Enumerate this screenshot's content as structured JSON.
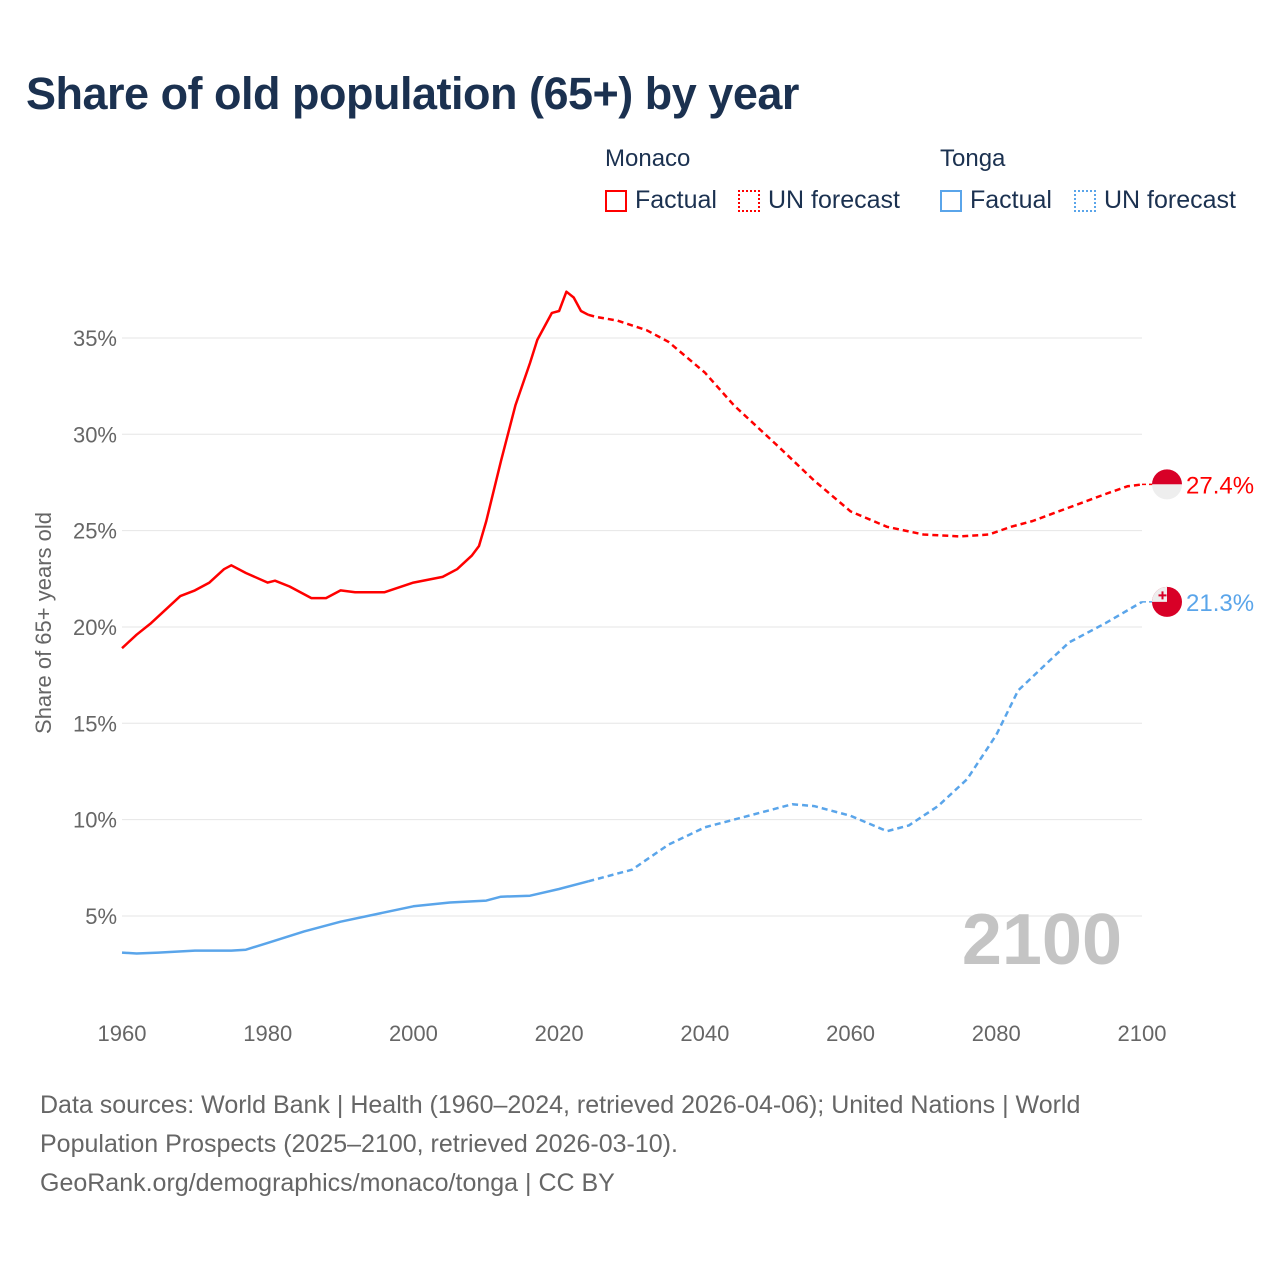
{
  "title": "Share of old population (65+) by year",
  "legend": {
    "groups": [
      {
        "country": "Monaco",
        "factual": "Factual",
        "forecast": "UN forecast",
        "color": "#ff0000"
      },
      {
        "country": "Tonga",
        "factual": "Factual",
        "forecast": "UN forecast",
        "color": "#5aa5ea"
      }
    ]
  },
  "footer": {
    "line1": "Data sources: World Bank | Health (1960–2024, retrieved 2026-04-06); United Nations | World",
    "line2": "Population Prospects (2025–2100, retrieved 2026-03-10).",
    "line3": "GeoRank.org/demographics/monaco/tonga | CC BY"
  },
  "chart_data": {
    "type": "line",
    "title": "Share of old population (65+) by year",
    "xlabel": "",
    "ylabel": "Share of 65+ years old",
    "xlim": [
      1960,
      2100
    ],
    "ylim": [
      0,
      37.5
    ],
    "x_ticks": [
      1960,
      1980,
      2000,
      2020,
      2040,
      2060,
      2080,
      2100
    ],
    "x_tick_labels": [
      "1960",
      "1980",
      "2000",
      "2020",
      "2040",
      "2060",
      "2080",
      "2100"
    ],
    "y_ticks": [
      5,
      10,
      15,
      20,
      25,
      30,
      35
    ],
    "y_tick_labels": [
      "5%",
      "10%",
      "15%",
      "20%",
      "25%",
      "30%",
      "35%"
    ],
    "grid": true,
    "year_label": "2100",
    "series": [
      {
        "name": "Monaco Factual",
        "color": "#ff0000",
        "dash": false,
        "x": [
          1960,
          1962,
          1964,
          1966,
          1968,
          1970,
          1972,
          1974,
          1975,
          1977,
          1980,
          1981,
          1983,
          1986,
          1988,
          1990,
          1992,
          1996,
          2000,
          2004,
          2006,
          2008,
          2009,
          2010,
          2012,
          2014,
          2016,
          2017,
          2019,
          2020,
          2021,
          2022,
          2023,
          2024
        ],
        "y": [
          18.9,
          19.6,
          20.2,
          20.9,
          21.6,
          21.9,
          22.3,
          23.0,
          23.2,
          22.8,
          22.3,
          22.4,
          22.1,
          21.5,
          21.5,
          21.9,
          21.8,
          21.8,
          22.3,
          22.6,
          23.0,
          23.7,
          24.2,
          25.5,
          28.6,
          31.5,
          33.7,
          34.9,
          36.3,
          36.4,
          37.4,
          37.1,
          36.4,
          36.2
        ]
      },
      {
        "name": "Monaco UN forecast",
        "color": "#ff0000",
        "dash": true,
        "x": [
          2024,
          2025,
          2028,
          2032,
          2035,
          2040,
          2044,
          2050,
          2055,
          2060,
          2065,
          2070,
          2075,
          2079,
          2082,
          2085,
          2090,
          2095,
          2098,
          2100
        ],
        "y": [
          36.2,
          36.1,
          35.9,
          35.4,
          34.8,
          33.2,
          31.5,
          29.4,
          27.6,
          26.0,
          25.2,
          24.8,
          24.7,
          24.8,
          25.2,
          25.5,
          26.2,
          26.9,
          27.3,
          27.4
        ]
      },
      {
        "name": "Tonga Factual",
        "color": "#5aa5ea",
        "dash": false,
        "x": [
          1960,
          1962,
          1965,
          1970,
          1975,
          1977,
          1980,
          1985,
          1990,
          1995,
          2000,
          2005,
          2010,
          2012,
          2016,
          2020,
          2024
        ],
        "y": [
          3.1,
          3.05,
          3.1,
          3.2,
          3.2,
          3.25,
          3.6,
          4.2,
          4.7,
          5.1,
          5.5,
          5.7,
          5.8,
          6.0,
          6.05,
          6.4,
          6.8
        ]
      },
      {
        "name": "Tonga UN forecast",
        "color": "#5aa5ea",
        "dash": true,
        "x": [
          2024,
          2030,
          2035,
          2040,
          2045,
          2050,
          2052,
          2055,
          2060,
          2065,
          2068,
          2072,
          2076,
          2080,
          2083,
          2088,
          2090,
          2095,
          2100
        ],
        "y": [
          6.8,
          7.4,
          8.7,
          9.6,
          10.1,
          10.6,
          10.8,
          10.7,
          10.2,
          9.4,
          9.7,
          10.7,
          12.1,
          14.4,
          16.7,
          18.5,
          19.2,
          20.2,
          21.3
        ]
      }
    ],
    "end_labels": [
      {
        "country": "Monaco",
        "value": 27.4,
        "text": "27.4%",
        "color": "#ff0000"
      },
      {
        "country": "Tonga",
        "value": 21.3,
        "text": "21.3%",
        "color": "#5aa5ea"
      }
    ]
  }
}
